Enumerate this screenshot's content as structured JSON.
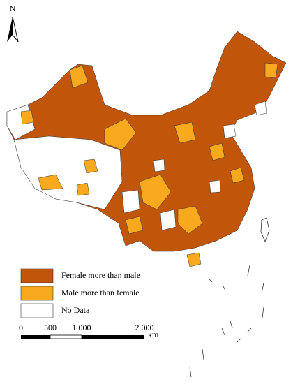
{
  "north_arrow": {
    "label": "N"
  },
  "legend": {
    "items": [
      {
        "label": "Female more than male",
        "color": "#c1550a"
      },
      {
        "label": "Male more than female",
        "color": "#f8a91d"
      },
      {
        "label": "No Data",
        "color": "#ffffff"
      }
    ]
  },
  "scale_bar": {
    "labels": [
      "0",
      "500",
      "1 000",
      "2 000"
    ],
    "unit": "km"
  }
}
